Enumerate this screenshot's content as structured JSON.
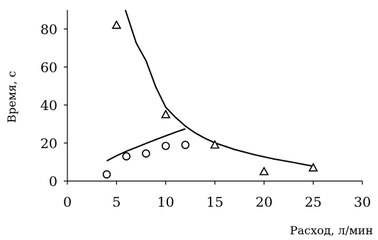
{
  "chart_data": {
    "type": "scatter",
    "xlabel": "Расход, л/мин",
    "ylabel": "Время, с",
    "xlim": [
      0,
      30
    ],
    "ylim": [
      0,
      90
    ],
    "x_ticks": [
      0,
      5,
      10,
      15,
      20,
      25,
      30
    ],
    "y_ticks": [
      0,
      20,
      40,
      60,
      80
    ],
    "grid": false,
    "series": [
      {
        "marker": "triangle",
        "x": [
          5,
          10,
          15,
          20,
          25
        ],
        "y": [
          82,
          35,
          19,
          5,
          7
        ]
      },
      {
        "marker": "circle",
        "x": [
          4,
          6,
          8,
          10,
          12
        ],
        "y": [
          3.5,
          13,
          14.5,
          18.5,
          19
        ]
      }
    ],
    "trendlines": [
      {
        "type": "power",
        "x": [
          5.9,
          7,
          8,
          9,
          10,
          11,
          12,
          13,
          14,
          15,
          17,
          19,
          21,
          23,
          25
        ],
        "y": [
          90,
          72.6,
          63.3,
          49.4,
          38.8,
          33.5,
          28.9,
          25.3,
          22.5,
          20.1,
          16.6,
          13.9,
          11.6,
          9.8,
          7.8
        ]
      },
      {
        "type": "log",
        "x": [
          4,
          5,
          6,
          7,
          8,
          9,
          10,
          11,
          12
        ],
        "y": [
          10.6,
          13.3,
          15.7,
          17.7,
          19.8,
          21.8,
          23.8,
          25.7,
          27.5
        ]
      }
    ]
  }
}
